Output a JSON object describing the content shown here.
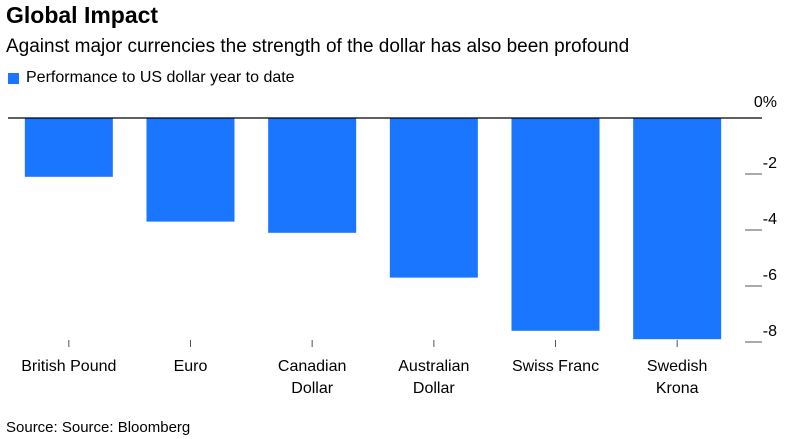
{
  "title": "Global Impact",
  "subtitle": "Against major currencies the strength of the dollar has also been profound",
  "source": "Source: Source: Bloomberg",
  "colors": {
    "bar": "#1a75ff",
    "axis": "#000000",
    "tick": "#555555"
  },
  "chart_data": {
    "type": "bar",
    "categories": [
      [
        "British Pound"
      ],
      [
        "Euro"
      ],
      [
        "Canadian",
        "Dollar"
      ],
      [
        "Australian",
        "Dollar"
      ],
      [
        "Swiss Franc"
      ],
      [
        "Swedish",
        "Krona"
      ]
    ],
    "series": [
      {
        "name": "Performance to US dollar year to date",
        "values": [
          -2.1,
          -3.7,
          -4.1,
          -5.7,
          -7.6,
          -7.9
        ]
      }
    ],
    "yticks": [
      "0%",
      "-2",
      "-4",
      "-6",
      "-8"
    ],
    "ylim": [
      -8,
      0
    ],
    "legend": "top-left",
    "grid": false
  }
}
